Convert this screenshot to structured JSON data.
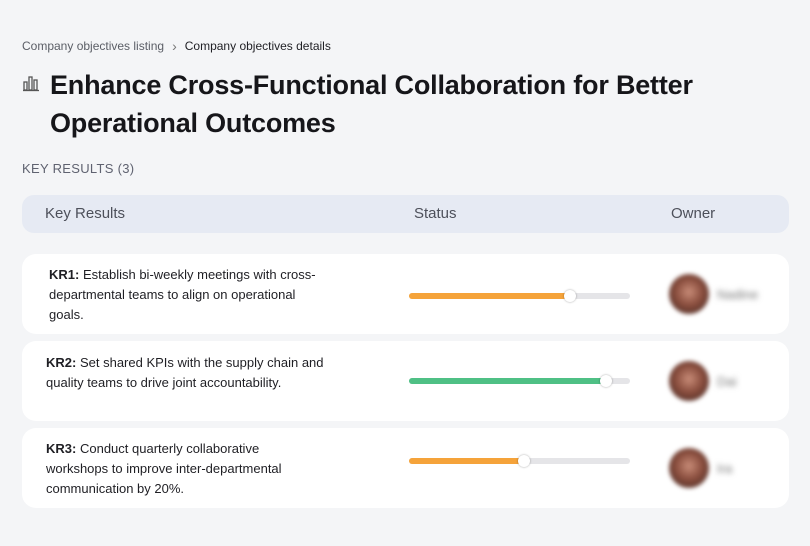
{
  "breadcrumb": {
    "parent": "Company objectives listing",
    "current": "Company objectives details"
  },
  "page": {
    "title": "Enhance Cross-Functional Collaboration for Better Operational Outcomes"
  },
  "section": {
    "label": "KEY RESULTS (3)"
  },
  "table": {
    "headers": {
      "key_results": "Key Results",
      "status": "Status",
      "owner": "Owner"
    },
    "rows": [
      {
        "code": "KR1:",
        "text": "Establish bi-weekly meetings with cross-departmental teams to align on operational goals.",
        "progress": 0.73,
        "status_color": "#f5a33a",
        "owner": "Nadine"
      },
      {
        "code": "KR2:",
        "text": "Set shared KPIs with the supply chain and quality teams to drive joint accountability.",
        "progress": 0.89,
        "status_color": "#4fc085",
        "owner": "Dai"
      },
      {
        "code": "KR3:",
        "text": "Conduct quarterly collaborative workshops to improve inter-departmental communication by 20%.",
        "progress": 0.52,
        "status_color": "#f5a33a",
        "owner": "Ira"
      }
    ]
  },
  "icons": {
    "title_icon": "building-chart-icon",
    "separator": "chevron-right-icon"
  },
  "colors": {
    "background": "#f4f5f7",
    "header_bg": "#e6eaf3",
    "track": "#e5e5e8"
  }
}
